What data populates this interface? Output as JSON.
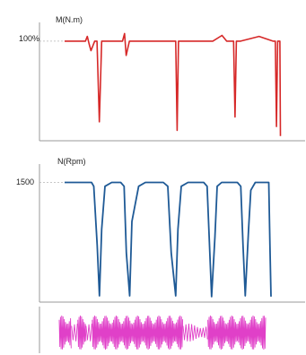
{
  "chart_data": [
    {
      "type": "line",
      "ylabel": "M(N.m)",
      "ytick_labels": [
        "100%"
      ],
      "ref_value": 100,
      "ylim": [
        -5,
        115
      ],
      "xlim": [
        0,
        100
      ],
      "color": "#d62828",
      "series": [
        {
          "x": [
            0,
            9,
            9.8,
            10.6,
            11.4,
            13,
            14,
            15,
            16,
            17,
            22,
            25,
            25.9,
            26.6,
            28,
            30.5,
            36,
            38,
            45,
            48,
            48.6,
            49.2,
            51,
            56,
            60,
            64,
            68,
            70,
            72,
            73,
            73.6,
            74.2,
            76,
            84,
            90,
            91,
            91.5,
            92,
            93,
            93.2
          ],
          "y": [
            100,
            100,
            105,
            97,
            90,
            100,
            100,
            15,
            100,
            100,
            100,
            100,
            108,
            85,
            100,
            100,
            100,
            100,
            100,
            100,
            6,
            100,
            100,
            100,
            100,
            100,
            106,
            100,
            100,
            100,
            20,
            100,
            100,
            105,
            100,
            100,
            10,
            100,
            100,
            0
          ]
        }
      ]
    },
    {
      "type": "line",
      "ylabel": "N(Rpm)",
      "ytick_labels": [
        "1500"
      ],
      "ref_value": 1500,
      "ylim": [
        -30,
        1620
      ],
      "xlim": [
        0,
        100
      ],
      "color": "#1f5a96",
      "series": [
        {
          "x": [
            0,
            12,
            13,
            14.5,
            15.5,
            16.5,
            18,
            21,
            25,
            26.5,
            27.5,
            29,
            30,
            33,
            36,
            38,
            44,
            46,
            47.5,
            49.5,
            50.5,
            52,
            55,
            60,
            62,
            63.5,
            65.5,
            67,
            68,
            70,
            75,
            77,
            78.5,
            79.5,
            80.5,
            82,
            83,
            84,
            85,
            88,
            91,
            91.5,
            92
          ],
          "y": [
            1500,
            1500,
            1450,
            700,
            50,
            900,
            1450,
            1500,
            1500,
            1450,
            600,
            50,
            1000,
            1450,
            1500,
            1500,
            1500,
            1450,
            600,
            50,
            900,
            1450,
            1500,
            1500,
            1500,
            1450,
            40,
            800,
            1450,
            1500,
            1500,
            1500,
            1450,
            700,
            50,
            900,
            1400,
            1450,
            1500,
            1500,
            1500,
            700,
            40
          ]
        }
      ]
    }
  ],
  "waveform": {
    "color": "#e040c8",
    "dense_segments": [
      [
        0,
        6
      ],
      [
        9,
        13
      ],
      [
        16,
        60
      ],
      [
        72,
        100
      ]
    ],
    "sparse_segments": [
      [
        6,
        9
      ],
      [
        13,
        16
      ],
      [
        60,
        72
      ]
    ]
  }
}
